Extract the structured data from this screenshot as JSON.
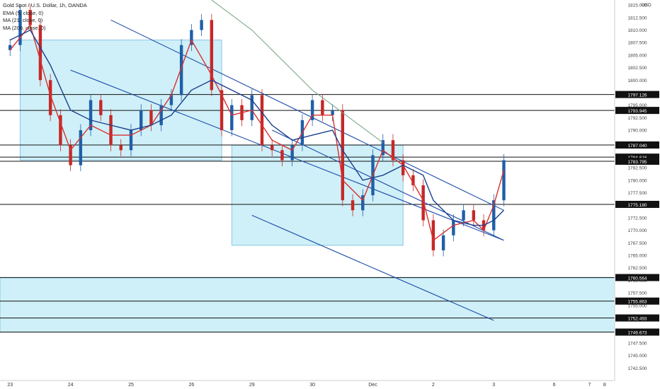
{
  "legend": {
    "title": "Gold Spot / U.S. Dollar, 1h, OANDA",
    "ema": "EMA (5, close, 0)",
    "ma21": "MA (21, close, 0)",
    "ma200": "MA (200, close, 0)"
  },
  "axis": {
    "currency": "USD"
  },
  "colors": {
    "up": "#1f5fa8",
    "down": "#c62828",
    "ema": "#d93030",
    "ma21": "#1b3f8f",
    "ma200": "#7fa98a",
    "zone_fill": "#c7eef7",
    "zone_stroke": "#5aaed8",
    "channel": "#1a4aa8"
  },
  "chart_data": {
    "type": "candlestick",
    "title": "Gold Spot / U.S. Dollar, 1h, OANDA",
    "ylim": [
      1740.0,
      1816.0
    ],
    "y_ticks": [
      "1742.500",
      "1745.000",
      "1747.500",
      "1750.000",
      "1752.500",
      "1755.000",
      "1757.500",
      "1760.000",
      "1762.500",
      "1765.000",
      "1767.500",
      "1770.000",
      "1772.500",
      "1775.000",
      "1777.500",
      "1780.000",
      "1782.500",
      "1785.000",
      "1787.500",
      "1790.000",
      "1792.500",
      "1795.000",
      "1797.500",
      "1800.000",
      "1802.500",
      "1805.000",
      "1807.500",
      "1810.000",
      "1812.500",
      "1815.000"
    ],
    "x_ticks": [
      "23",
      "24",
      "25",
      "26",
      "29",
      "30",
      "Dec",
      "2",
      "3",
      "6",
      "7",
      "8"
    ],
    "price_levels": [
      {
        "label": "1797.126",
        "value": 1797.126
      },
      {
        "label": "1793.945",
        "value": 1793.945
      },
      {
        "label": "1787.040",
        "value": 1787.04
      },
      {
        "label": "1784.616",
        "value": 1784.616
      },
      {
        "label": "1783.795",
        "value": 1783.795
      },
      {
        "label": "1775.180",
        "value": 1775.18
      },
      {
        "label": "1760.564",
        "value": 1760.564
      },
      {
        "label": "1755.863",
        "value": 1755.863
      },
      {
        "label": "1752.493",
        "value": 1752.493
      },
      {
        "label": "1749.673",
        "value": 1749.673
      }
    ],
    "series": [
      {
        "name": "Gold Spot / U.S. Dollar",
        "style": "candles",
        "points": [
          [
            0,
            1807
          ],
          [
            1,
            1814
          ],
          [
            2,
            1811
          ],
          [
            3,
            1800
          ],
          [
            4,
            1793
          ],
          [
            5,
            1787
          ],
          [
            6,
            1783
          ],
          [
            7,
            1790
          ],
          [
            8,
            1796
          ],
          [
            9,
            1793
          ],
          [
            10,
            1787
          ],
          [
            11,
            1786
          ],
          [
            12,
            1790
          ],
          [
            13,
            1794
          ],
          [
            14,
            1791
          ],
          [
            15,
            1795
          ],
          [
            16,
            1797
          ],
          [
            17,
            1807
          ],
          [
            18,
            1810
          ],
          [
            19,
            1812
          ],
          [
            20,
            1798
          ],
          [
            21,
            1790
          ],
          [
            22,
            1795
          ],
          [
            23,
            1792
          ],
          [
            24,
            1797
          ],
          [
            25,
            1787
          ],
          [
            26,
            1786
          ],
          [
            27,
            1784
          ],
          [
            28,
            1787
          ],
          [
            29,
            1792
          ],
          [
            30,
            1796
          ],
          [
            31,
            1793
          ],
          [
            32,
            1794
          ],
          [
            33,
            1776
          ],
          [
            34,
            1774
          ],
          [
            35,
            1777
          ],
          [
            36,
            1785
          ],
          [
            37,
            1788
          ],
          [
            38,
            1784
          ],
          [
            39,
            1781
          ],
          [
            40,
            1779
          ],
          [
            41,
            1772
          ],
          [
            42,
            1766
          ],
          [
            43,
            1769
          ],
          [
            44,
            1772
          ],
          [
            45,
            1774
          ],
          [
            46,
            1772
          ],
          [
            47,
            1770
          ],
          [
            48,
            1776
          ],
          [
            49,
            1784
          ]
        ]
      },
      {
        "name": "EMA (5, close, 0)",
        "points": [
          [
            0,
            1806
          ],
          [
            2,
            1811
          ],
          [
            4,
            1797
          ],
          [
            6,
            1786
          ],
          [
            8,
            1791
          ],
          [
            10,
            1789
          ],
          [
            12,
            1789
          ],
          [
            14,
            1791
          ],
          [
            16,
            1797
          ],
          [
            18,
            1808
          ],
          [
            20,
            1801
          ],
          [
            22,
            1793
          ],
          [
            24,
            1794
          ],
          [
            26,
            1788
          ],
          [
            28,
            1786
          ],
          [
            30,
            1793
          ],
          [
            32,
            1793
          ],
          [
            33,
            1780
          ],
          [
            35,
            1776
          ],
          [
            37,
            1786
          ],
          [
            39,
            1783
          ],
          [
            41,
            1776
          ],
          [
            42,
            1768
          ],
          [
            44,
            1771
          ],
          [
            46,
            1772
          ],
          [
            47,
            1770
          ],
          [
            48,
            1775
          ],
          [
            49,
            1782
          ]
        ]
      },
      {
        "name": "MA (21, close, 0)",
        "points": [
          [
            0,
            1808
          ],
          [
            2,
            1810
          ],
          [
            4,
            1803
          ],
          [
            6,
            1794
          ],
          [
            8,
            1792
          ],
          [
            10,
            1791
          ],
          [
            12,
            1790
          ],
          [
            14,
            1791
          ],
          [
            16,
            1793
          ],
          [
            18,
            1798
          ],
          [
            20,
            1800
          ],
          [
            22,
            1798
          ],
          [
            24,
            1796
          ],
          [
            26,
            1791
          ],
          [
            28,
            1788
          ],
          [
            30,
            1789
          ],
          [
            32,
            1790
          ],
          [
            33,
            1786
          ],
          [
            35,
            1780
          ],
          [
            37,
            1781
          ],
          [
            39,
            1783
          ],
          [
            41,
            1781
          ],
          [
            42,
            1776
          ],
          [
            44,
            1772
          ],
          [
            46,
            1771
          ],
          [
            47,
            1771
          ],
          [
            48,
            1772
          ],
          [
            49,
            1774
          ]
        ]
      },
      {
        "name": "MA (200, close, 0)",
        "points": [
          [
            20,
            1816
          ],
          [
            22,
            1813
          ],
          [
            24,
            1810
          ],
          [
            26,
            1806
          ],
          [
            28,
            1802
          ],
          [
            30,
            1798
          ],
          [
            32,
            1795
          ],
          [
            34,
            1792
          ],
          [
            36,
            1789
          ],
          [
            37,
            1787.5
          ]
        ]
      }
    ],
    "zones": [
      {
        "from_x": 1,
        "to_x": 21,
        "top": 1808,
        "bottom": 1784
      },
      {
        "from_x": 22,
        "to_x": 39,
        "top": 1787,
        "bottom": 1767
      },
      {
        "from_x": -1,
        "to_x": 60,
        "top": 1760.5,
        "bottom": 1749.7
      }
    ],
    "channel_lines": [
      {
        "x1": 10,
        "y1": 1812,
        "x2": 49,
        "y2": 1774
      },
      {
        "x1": 6,
        "y1": 1802,
        "x2": 49,
        "y2": 1768
      },
      {
        "x1": 26,
        "y1": 1790,
        "x2": 49,
        "y2": 1768
      },
      {
        "x1": 24,
        "y1": 1773,
        "x2": 48,
        "y2": 1752
      }
    ],
    "grid": false
  }
}
